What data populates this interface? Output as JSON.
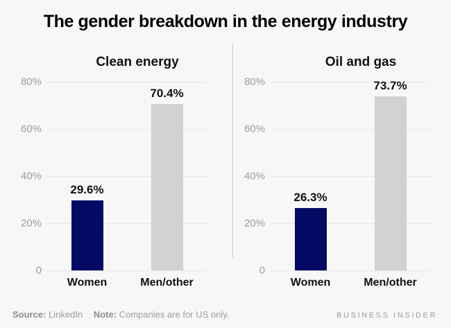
{
  "page": {
    "title": "The gender breakdown in the energy industry",
    "background": "#f7f7f7"
  },
  "colors": {
    "women_bar": "#020a64",
    "men_other_bar": "#d2d2d2",
    "gridline": "#e8e8e8",
    "axis_tick_label": "#9b9b9b",
    "panel_divider": "#c9c9c9",
    "value_label": "#111111"
  },
  "footer": {
    "source_label": "Source:",
    "source_value": "LinkedIn",
    "note_label": "Note:",
    "note_value": "Companies are for US only.",
    "brand": "BUSINESS INSIDER"
  },
  "chart_data": [
    {
      "type": "bar",
      "title": "Clean energy",
      "categories": [
        "Women",
        "Men/other"
      ],
      "values": [
        29.6,
        70.4
      ],
      "value_labels": [
        "29.6%",
        "70.4%"
      ],
      "bar_colors": [
        "#020a64",
        "#d2d2d2"
      ],
      "ylim": [
        0,
        80
      ],
      "yticks_top_to_bottom": [
        "80%",
        "60%",
        "40%",
        "20%",
        "0"
      ],
      "grid": true,
      "legend": "none"
    },
    {
      "type": "bar",
      "title": "Oil and gas",
      "categories": [
        "Women",
        "Men/other"
      ],
      "values": [
        26.3,
        73.7
      ],
      "value_labels": [
        "26.3%",
        "73.7%"
      ],
      "bar_colors": [
        "#020a64",
        "#d2d2d2"
      ],
      "ylim": [
        0,
        80
      ],
      "yticks_top_to_bottom": [
        "80%",
        "60%",
        "40%",
        "20%",
        "0"
      ],
      "grid": true,
      "legend": "none"
    }
  ]
}
